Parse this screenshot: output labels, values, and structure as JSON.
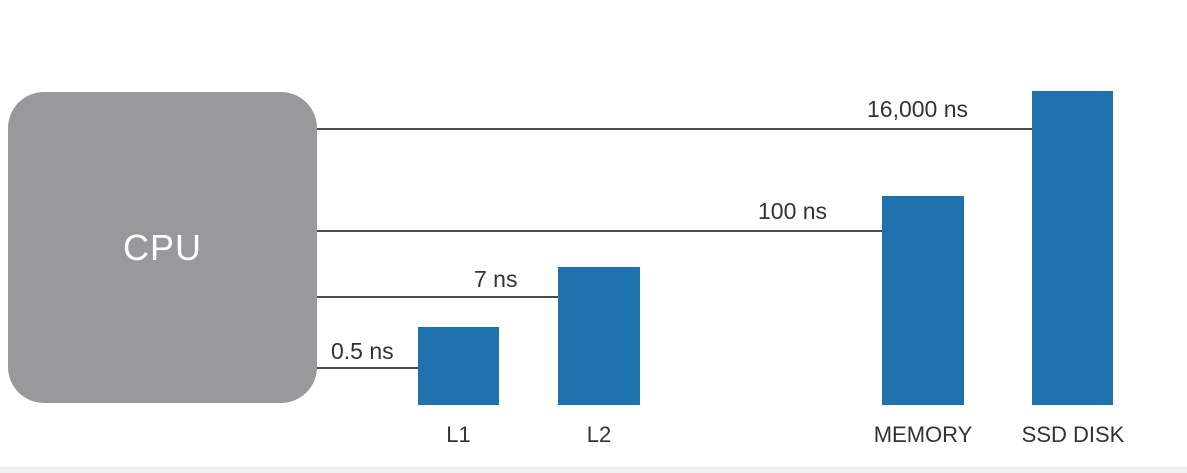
{
  "cpu": {
    "label": "CPU"
  },
  "levels": [
    {
      "id": "l1",
      "name": "L1",
      "latency": "0.5 ns",
      "latency_ns": 0.5
    },
    {
      "id": "l2",
      "name": "L2",
      "latency": "7 ns",
      "latency_ns": 7
    },
    {
      "id": "memory",
      "name": "MEMORY",
      "latency": "100 ns",
      "latency_ns": 100
    },
    {
      "id": "ssd",
      "name": "SSD DISK",
      "latency": "16,000 ns",
      "latency_ns": 16000
    }
  ],
  "colors": {
    "cpu": "#99999b",
    "bar": "#1e73ae",
    "connector": "#4a4a4a",
    "text": "#333333"
  }
}
